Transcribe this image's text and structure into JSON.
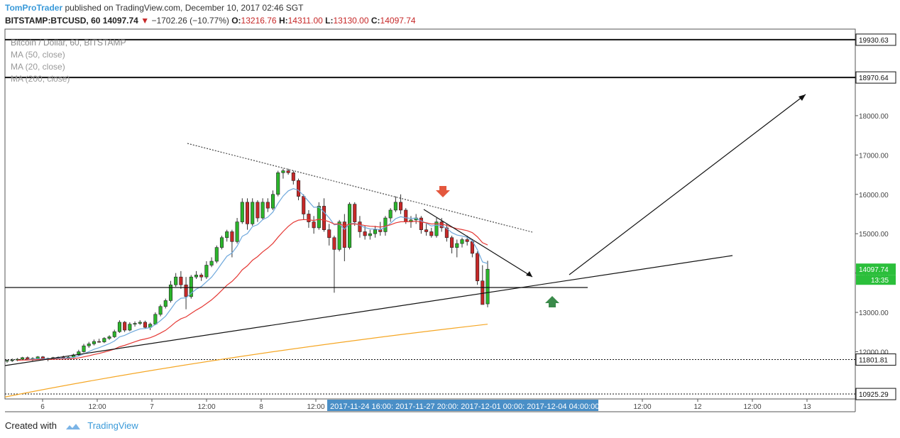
{
  "header": {
    "author": "TomProTrader",
    "published": "published on TradingView.com, December 10, 2017 02:46 SGT",
    "symbol": "BITSTAMP:BTCUSD, 60",
    "last": "14097.74",
    "down_arrow": "▼",
    "change": "−1702.26 (−10.77%)",
    "o_label": "O:",
    "o_value": "13216.76",
    "h_label": "H:",
    "h_value": "14311.00",
    "l_label": "L:",
    "l_value": "13130.00",
    "c_label": "C:",
    "c_value": "14097.74"
  },
  "legend": {
    "title": "Bitcoin / Dollar, 60, BITSTAMP",
    "ma50": "MA (50, close)",
    "ma20": "MA (20, close)",
    "ma200": "MA (200, close)"
  },
  "footer": {
    "created_with": "Created with",
    "brand": "TradingView"
  },
  "colors": {
    "up": "#2bb52b",
    "down": "#c62828",
    "ma50": "#e53935",
    "ma20": "#6fa8dc",
    "ma200": "#f5a623",
    "accent": "#3a9ad9",
    "price_tag": "#2bbf3b"
  },
  "chart_data": {
    "type": "candlestick",
    "symbol": "BITSTAMP:BTCUSD",
    "interval": "60",
    "ylim": [
      10800,
      20200
    ],
    "y_ticks": [
      "12000.00",
      "13000.00",
      "14000.00",
      "15000.00",
      "16000.00",
      "17000.00",
      "18000.00"
    ],
    "x_ticks": [
      "6",
      "12:00",
      "7",
      "12:00",
      "8",
      "12:00",
      "12:00",
      "12",
      "12:00",
      "13"
    ],
    "x_range_label": "2017-11-24 16:00: 2017-11-27 20:00: 2017-12-01 00:00: 2017-12-04 04:00:00",
    "price_labels": [
      {
        "label": "19930.63",
        "value": 19930.63
      },
      {
        "label": "18970.64",
        "value": 18970.64
      },
      {
        "label": "11801.81",
        "value": 11801.81
      },
      {
        "label": "10925.29",
        "value": 10925.29
      }
    ],
    "current_price": {
      "label": "14097.74",
      "value": 14097.74,
      "timer": "13:35"
    },
    "candles": [
      [
        11760,
        11800,
        11720,
        11780
      ],
      [
        11780,
        11830,
        11740,
        11790
      ],
      [
        11790,
        11840,
        11760,
        11810
      ],
      [
        11810,
        11870,
        11780,
        11850
      ],
      [
        11850,
        11880,
        11790,
        11810
      ],
      [
        11810,
        11860,
        11760,
        11830
      ],
      [
        11830,
        11890,
        11810,
        11870
      ],
      [
        11870,
        11890,
        11780,
        11800
      ],
      [
        11800,
        11850,
        11760,
        11830
      ],
      [
        11830,
        11870,
        11800,
        11850
      ],
      [
        11850,
        11880,
        11810,
        11860
      ],
      [
        11860,
        11900,
        11820,
        11840
      ],
      [
        11840,
        11880,
        11800,
        11860
      ],
      [
        11860,
        11950,
        11840,
        11920
      ],
      [
        11920,
        12050,
        11900,
        12000
      ],
      [
        12000,
        12200,
        11980,
        12150
      ],
      [
        12150,
        12250,
        12100,
        12200
      ],
      [
        12200,
        12310,
        12160,
        12260
      ],
      [
        12260,
        12330,
        12230,
        12250
      ],
      [
        12250,
        12370,
        12220,
        12340
      ],
      [
        12340,
        12420,
        12300,
        12380
      ],
      [
        12380,
        12560,
        12350,
        12510
      ],
      [
        12510,
        12800,
        12480,
        12750
      ],
      [
        12750,
        12780,
        12500,
        12550
      ],
      [
        12550,
        12750,
        12520,
        12700
      ],
      [
        12700,
        12770,
        12640,
        12720
      ],
      [
        12720,
        12800,
        12680,
        12750
      ],
      [
        12750,
        12790,
        12590,
        12620
      ],
      [
        12620,
        12740,
        12550,
        12700
      ],
      [
        12700,
        13000,
        12680,
        12950
      ],
      [
        12950,
        13200,
        12900,
        13150
      ],
      [
        13150,
        13350,
        13100,
        13300
      ],
      [
        13300,
        13800,
        13250,
        13700
      ],
      [
        13700,
        14000,
        13650,
        13900
      ],
      [
        13900,
        14050,
        13600,
        13700
      ],
      [
        13700,
        13900,
        13080,
        13400
      ],
      [
        13400,
        13950,
        13350,
        13900
      ],
      [
        13900,
        14050,
        13850,
        13950
      ],
      [
        13950,
        14000,
        13800,
        13900
      ],
      [
        13900,
        14300,
        13850,
        14200
      ],
      [
        14200,
        14400,
        14150,
        14300
      ],
      [
        14300,
        14700,
        14250,
        14650
      ],
      [
        14650,
        14950,
        14600,
        14900
      ],
      [
        14900,
        15100,
        14800,
        15050
      ],
      [
        15050,
        15100,
        14400,
        14800
      ],
      [
        14800,
        15400,
        14750,
        15300
      ],
      [
        15300,
        15900,
        15250,
        15800
      ],
      [
        15800,
        15900,
        15100,
        15250
      ],
      [
        15250,
        15900,
        15200,
        15800
      ],
      [
        15800,
        15850,
        15300,
        15400
      ],
      [
        15400,
        15900,
        15350,
        15800
      ],
      [
        15800,
        15900,
        15550,
        15650
      ],
      [
        15650,
        16100,
        15600,
        16000
      ],
      [
        16000,
        16600,
        15950,
        16550
      ],
      [
        16550,
        16650,
        16400,
        16600
      ],
      [
        16600,
        16650,
        16500,
        16550
      ],
      [
        16550,
        16600,
        16250,
        16350
      ],
      [
        16350,
        16400,
        15850,
        15950
      ],
      [
        15950,
        16000,
        15350,
        15500
      ],
      [
        15500,
        15600,
        15150,
        15300
      ],
      [
        15300,
        15450,
        15000,
        15150
      ],
      [
        15150,
        15800,
        15100,
        15700
      ],
      [
        15700,
        15900,
        15050,
        15100
      ],
      [
        15100,
        15250,
        14700,
        14900
      ],
      [
        14900,
        14950,
        13500,
        14600
      ],
      [
        14600,
        15350,
        14550,
        15300
      ],
      [
        15300,
        15500,
        14300,
        14650
      ],
      [
        14650,
        15800,
        14600,
        15750
      ],
      [
        15750,
        15800,
        15200,
        15300
      ],
      [
        15300,
        15450,
        14900,
        15050
      ],
      [
        15050,
        15200,
        14850,
        14950
      ],
      [
        14950,
        15100,
        14850,
        15000
      ],
      [
        15000,
        15200,
        14900,
        15100
      ],
      [
        15100,
        15300,
        14950,
        15050
      ],
      [
        15050,
        15450,
        14950,
        15400
      ],
      [
        15400,
        15650,
        15300,
        15600
      ],
      [
        15600,
        15950,
        15550,
        15800
      ],
      [
        15800,
        16000,
        15500,
        15600
      ],
      [
        15600,
        15650,
        15250,
        15300
      ],
      [
        15300,
        15450,
        15150,
        15350
      ],
      [
        15350,
        15500,
        15250,
        15400
      ],
      [
        15400,
        15450,
        15000,
        15100
      ],
      [
        15100,
        15250,
        14950,
        15050
      ],
      [
        15050,
        15150,
        14900,
        14950
      ],
      [
        14950,
        15400,
        14900,
        15300
      ],
      [
        15300,
        15400,
        15050,
        15150
      ],
      [
        15150,
        15250,
        14800,
        14900
      ],
      [
        14900,
        14950,
        14500,
        14650
      ],
      [
        14650,
        14850,
        14400,
        14750
      ],
      [
        14750,
        14900,
        14650,
        14850
      ],
      [
        14850,
        14950,
        14700,
        14800
      ],
      [
        14800,
        14850,
        14400,
        14500
      ],
      [
        14500,
        14550,
        13700,
        13800
      ],
      [
        13800,
        14200,
        13250,
        13200
      ],
      [
        13216.76,
        14311,
        13130,
        14097.74
      ]
    ]
  }
}
